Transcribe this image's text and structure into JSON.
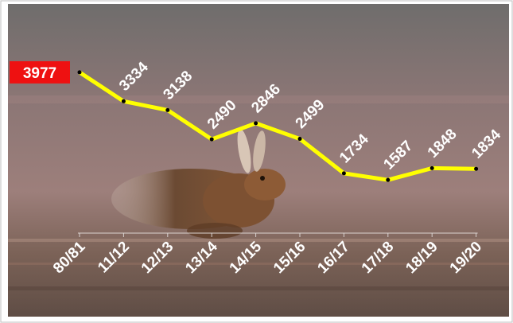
{
  "chart_data": {
    "type": "line",
    "categories": [
      "80/81",
      "11/12",
      "12/13",
      "13/14",
      "14/15",
      "15/16",
      "16/17",
      "17/18",
      "18/19",
      "19/20"
    ],
    "values": [
      3977,
      3334,
      3138,
      2490,
      2846,
      2499,
      1734,
      1587,
      1848,
      1834
    ],
    "color": "#ffff00",
    "ylim": [
      0,
      5000
    ]
  }
}
